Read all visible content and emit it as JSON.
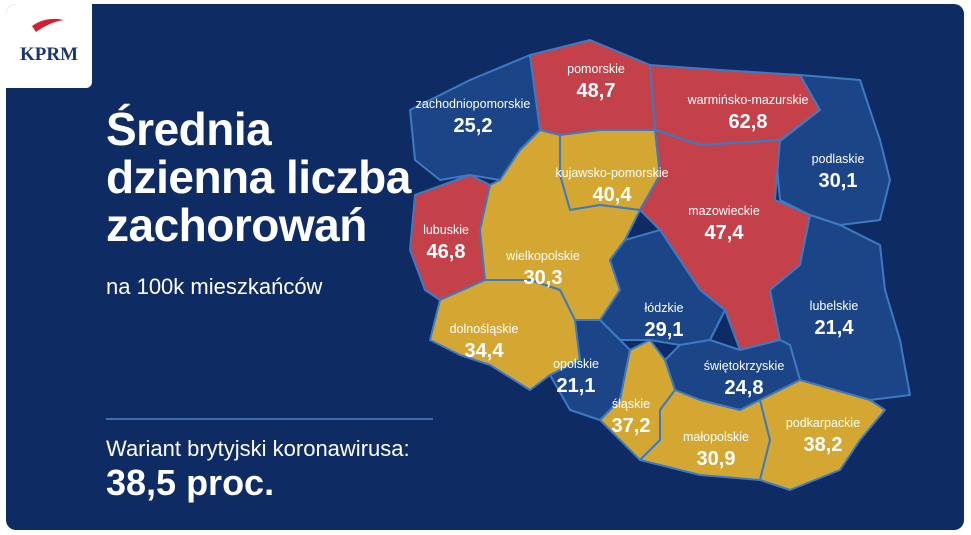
{
  "logo": "KPRM",
  "title": [
    "Średnia",
    "dzienna liczba",
    "zachorowań"
  ],
  "subtitle": "na 100k mieszkańców",
  "variant": {
    "label": "Wariant brytyjski koronawirusa:",
    "value": "38,5 proc."
  },
  "regions": [
    {
      "name": "zachodniopomorskie",
      "value": "25,2",
      "color": "#1c4588"
    },
    {
      "name": "pomorskie",
      "value": "48,7",
      "color": "#c44149"
    },
    {
      "name": "warmińsko-mazurskie",
      "value": "62,8",
      "color": "#c44149"
    },
    {
      "name": "podlaskie",
      "value": "30,1",
      "color": "#1c4588"
    },
    {
      "name": "kujawsko-pomorskie",
      "value": "40,4",
      "color": "#d4a733"
    },
    {
      "name": "mazowieckie",
      "value": "47,4",
      "color": "#c44149"
    },
    {
      "name": "lubuskie",
      "value": "46,8",
      "color": "#c44149"
    },
    {
      "name": "wielkopolskie",
      "value": "30,3",
      "color": "#d4a733"
    },
    {
      "name": "łódzkie",
      "value": "29,1",
      "color": "#1c4588"
    },
    {
      "name": "lubelskie",
      "value": "21,4",
      "color": "#1c4588"
    },
    {
      "name": "dolnośląskie",
      "value": "34,4",
      "color": "#d4a733"
    },
    {
      "name": "opolskie",
      "value": "21,1",
      "color": "#1c4588"
    },
    {
      "name": "świętokrzyskie",
      "value": "24,8",
      "color": "#1c4588"
    },
    {
      "name": "śląskie",
      "value": "37,2",
      "color": "#d4a733"
    },
    {
      "name": "małopolskie",
      "value": "30,9",
      "color": "#d4a733"
    },
    {
      "name": "podkarpackie",
      "value": "38,2",
      "color": "#d4a733"
    }
  ]
}
